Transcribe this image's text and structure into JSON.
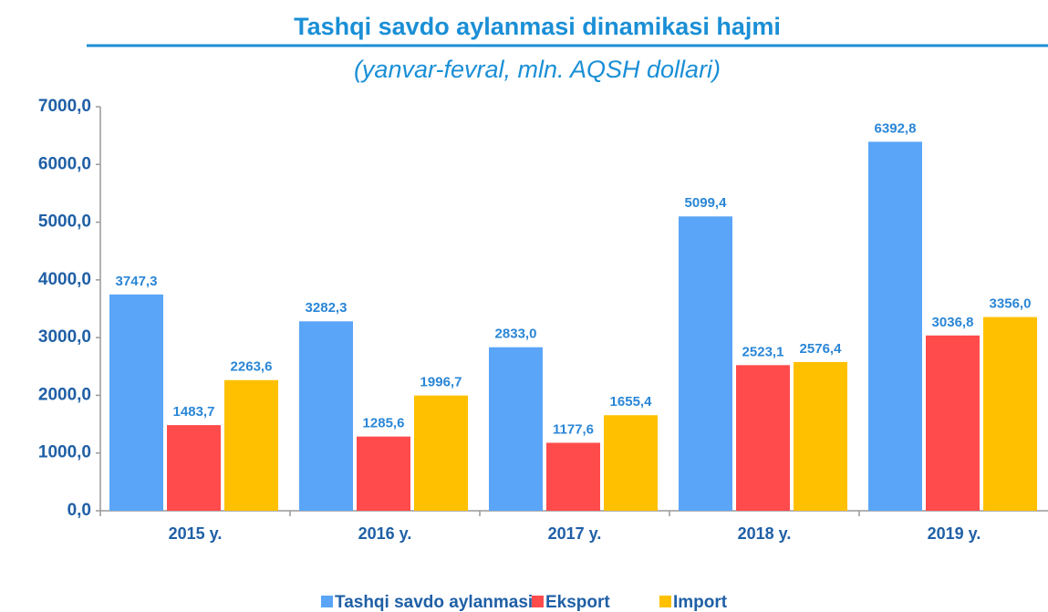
{
  "chart_data": {
    "type": "bar",
    "title": "Tashqi savdo aylanmasi dinamikasi hajmi",
    "subtitle": "(yanvar-fevral, mln. AQSH dollari)",
    "categories": [
      "2015 y.",
      "2016 y.",
      "2017 y.",
      "2018 y.",
      "2019 y."
    ],
    "series": [
      {
        "name": "Tashqi savdo aylanmasi",
        "color": "#5aa5f7",
        "values": [
          3747.3,
          3282.3,
          2833.0,
          5099.4,
          6392.8
        ],
        "value_labels": [
          "3747,3",
          "3282,3",
          "2833,0",
          "5099,4",
          "6392,8"
        ]
      },
      {
        "name": "Eksport",
        "color": "#ff4b4b",
        "values": [
          1483.7,
          1285.6,
          1177.6,
          2523.1,
          3036.8
        ],
        "value_labels": [
          "1483,7",
          "1285,6",
          "1177,6",
          "2523,1",
          "3036,8"
        ]
      },
      {
        "name": "Import",
        "color": "#ffc000",
        "values": [
          2263.6,
          1996.7,
          1655.4,
          2576.4,
          3356.0
        ],
        "value_labels": [
          "2263,6",
          "1996,7",
          "1655,4",
          "2576,4",
          "3356,0"
        ]
      }
    ],
    "ylim": [
      0,
      7000
    ],
    "yticks": [
      {
        "value": 0,
        "label": "0,0"
      },
      {
        "value": 1000,
        "label": "1000,0"
      },
      {
        "value": 2000,
        "label": "2000,0"
      },
      {
        "value": 3000,
        "label": "3000,0"
      },
      {
        "value": 4000,
        "label": "4000,0"
      },
      {
        "value": 5000,
        "label": "5000,0"
      },
      {
        "value": 6000,
        "label": "6000,0"
      },
      {
        "value": 7000,
        "label": "7000,0"
      }
    ],
    "legend": "bottom"
  }
}
